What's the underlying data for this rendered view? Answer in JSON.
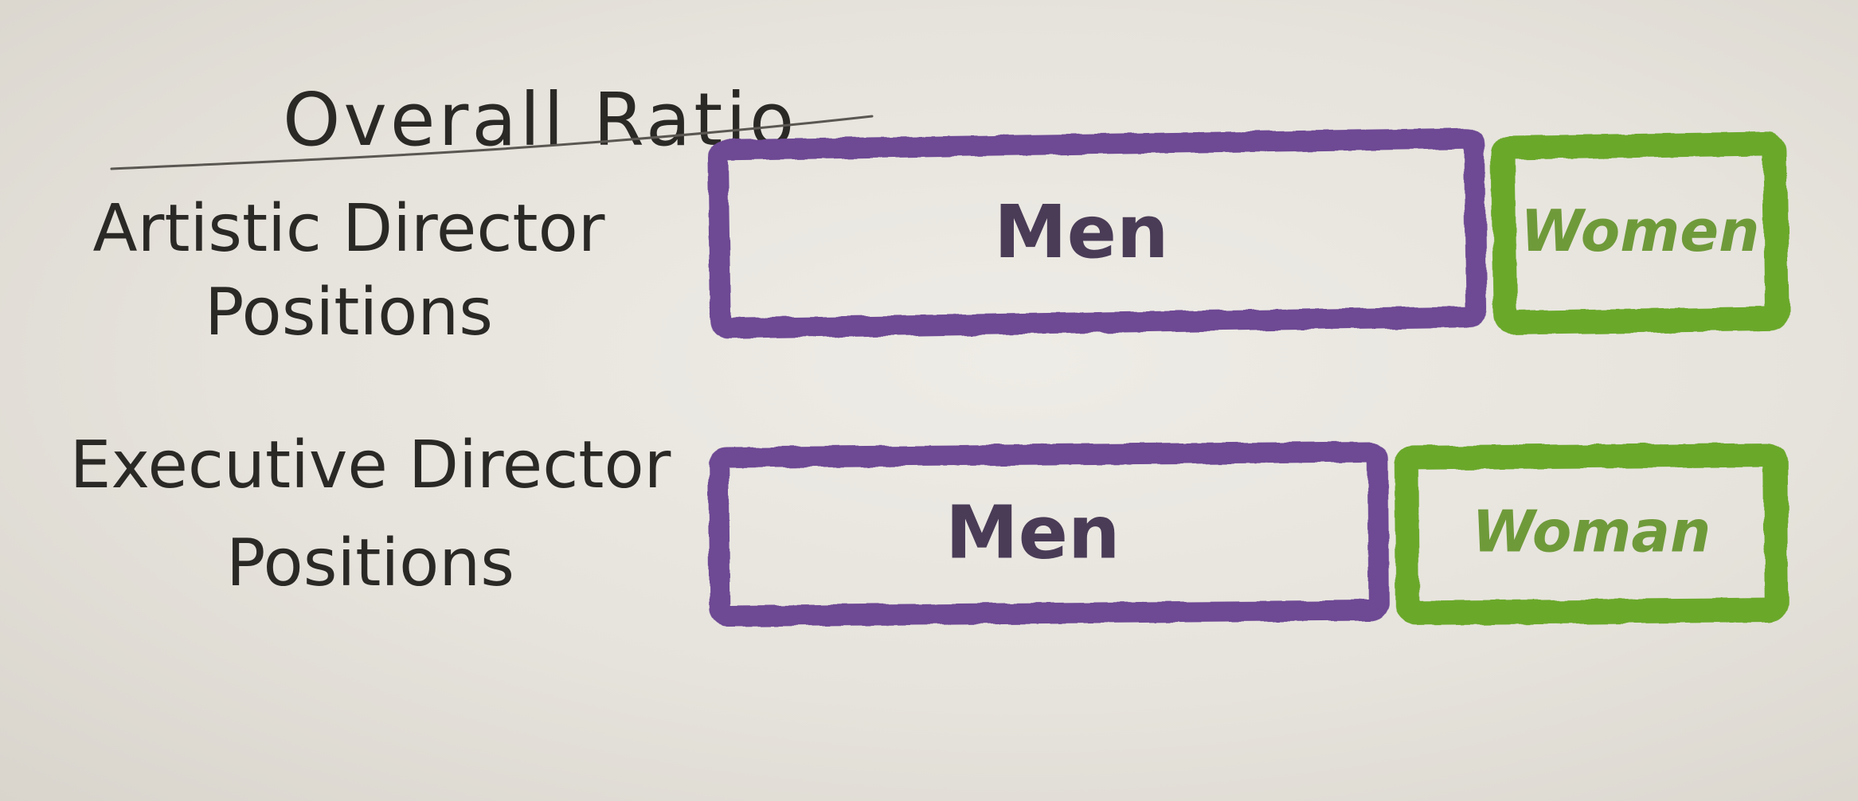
{
  "chart_data": {
    "type": "bar",
    "stacked": true,
    "percent": true,
    "title": "Overall Ratio",
    "categories": [
      "Artistic Director Positions",
      "Executive Director Positions"
    ],
    "series": [
      {
        "name": "Men",
        "values": [
          72,
          63
        ],
        "segment_labels": [
          "Men",
          "Men"
        ]
      },
      {
        "name": "Women",
        "values": [
          28,
          37
        ],
        "segment_labels": [
          "Women",
          "Woman"
        ]
      }
    ],
    "xlim": [
      0,
      100
    ],
    "grid": false,
    "legend": "none"
  },
  "colors": {
    "men": "#6e4a94",
    "women": "#6aa82c",
    "men_text": "#4a3c57",
    "women_text": "#6f9a3a",
    "ink": "#2b2926"
  }
}
